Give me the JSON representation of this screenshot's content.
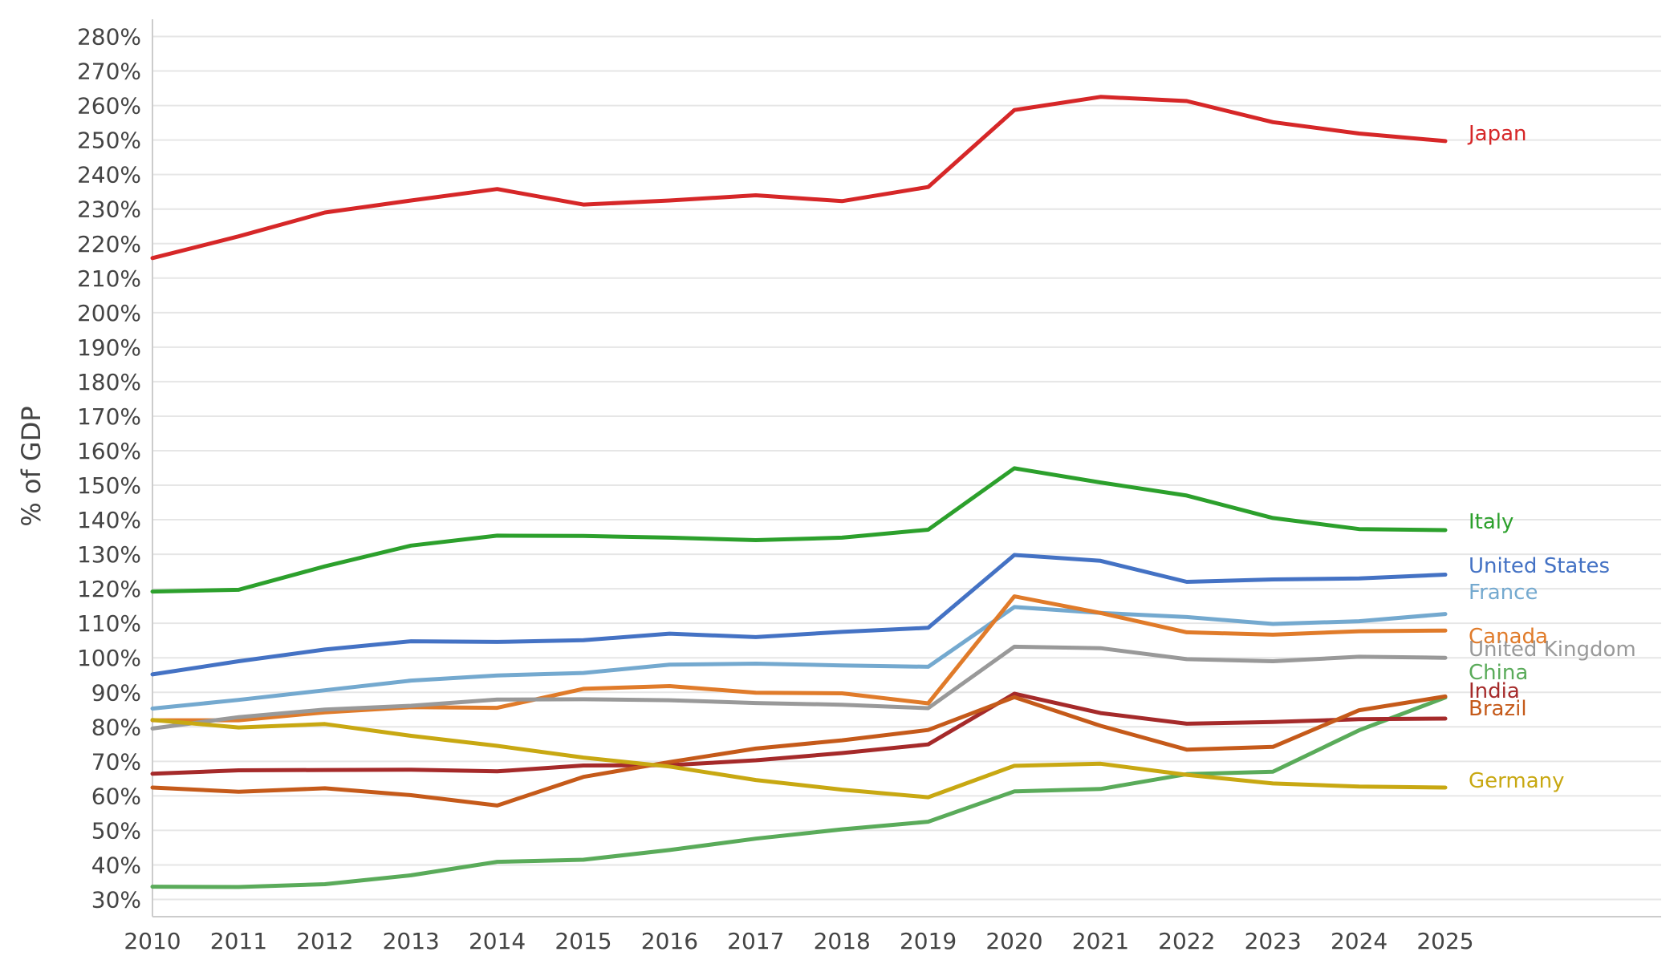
{
  "chart_data": {
    "type": "line",
    "title": "",
    "xlabel": "",
    "ylabel": "% of GDP",
    "x": [
      2010,
      2011,
      2012,
      2013,
      2014,
      2015,
      2016,
      2017,
      2018,
      2019,
      2020,
      2021,
      2022,
      2023,
      2024,
      2025
    ],
    "ylim": [
      25,
      285
    ],
    "yticks": [
      30,
      40,
      50,
      60,
      70,
      80,
      90,
      100,
      110,
      120,
      130,
      140,
      150,
      160,
      170,
      180,
      190,
      200,
      210,
      220,
      230,
      240,
      250,
      260,
      270,
      280
    ],
    "ytick_suffix": "%",
    "grid": "horizontal",
    "legend": "direct labels at line ends (right)",
    "series": [
      {
        "name": "Japan",
        "color": "#d62728",
        "values": [
          215.8,
          222.1,
          229.0,
          232.5,
          235.8,
          231.3,
          232.5,
          234.0,
          232.3,
          236.4,
          258.7,
          262.5,
          261.3,
          255.2,
          251.9,
          249.7
        ]
      },
      {
        "name": "Italy",
        "color": "#2ca02c",
        "values": [
          119.2,
          119.7,
          126.5,
          132.5,
          135.4,
          135.3,
          134.8,
          134.1,
          134.8,
          137.1,
          154.9,
          150.8,
          147.0,
          140.5,
          137.3,
          137.0
        ]
      },
      {
        "name": "United States",
        "color": "#4472c4",
        "values": [
          95.2,
          99.0,
          102.4,
          104.8,
          104.6,
          105.1,
          107.0,
          106.0,
          107.5,
          108.7,
          129.8,
          128.1,
          122.0,
          122.7,
          123.0,
          124.1
        ]
      },
      {
        "name": "France",
        "color": "#74a9cf",
        "values": [
          85.3,
          87.8,
          90.6,
          93.4,
          94.9,
          95.6,
          98.0,
          98.3,
          97.8,
          97.4,
          114.7,
          113.0,
          111.8,
          109.8,
          110.6,
          112.7
        ]
      },
      {
        "name": "Canada",
        "color": "#e07b2a",
        "values": [
          81.9,
          81.9,
          84.2,
          85.7,
          85.5,
          91.0,
          91.8,
          89.9,
          89.7,
          86.8,
          117.8,
          113.0,
          107.4,
          106.7,
          107.7,
          107.9
        ]
      },
      {
        "name": "United Kingdom",
        "color": "#999999",
        "values": [
          79.5,
          82.8,
          85.0,
          86.1,
          87.9,
          88.0,
          87.7,
          86.9,
          86.4,
          85.4,
          103.2,
          102.8,
          99.6,
          99.0,
          100.3,
          100.0
        ]
      },
      {
        "name": "China",
        "color": "#5aab5a",
        "values": [
          33.7,
          33.6,
          34.4,
          37.0,
          40.9,
          41.5,
          44.3,
          47.6,
          50.3,
          52.5,
          61.3,
          62.0,
          66.3,
          67.0,
          79.0,
          88.5
        ]
      },
      {
        "name": "India",
        "color": "#a52a2a",
        "values": [
          66.4,
          67.4,
          67.5,
          67.6,
          67.1,
          68.8,
          68.9,
          70.3,
          72.4,
          74.9,
          89.6,
          84.0,
          80.9,
          81.4,
          82.2,
          82.4
        ]
      },
      {
        "name": "Brazil",
        "color": "#c55a1a",
        "values": [
          62.4,
          61.2,
          62.2,
          60.2,
          57.2,
          65.5,
          69.8,
          73.7,
          76.1,
          79.1,
          88.6,
          80.3,
          73.4,
          74.2,
          84.8,
          88.8
        ]
      },
      {
        "name": "Germany",
        "color": "#c8a812",
        "values": [
          82.0,
          79.8,
          80.8,
          77.4,
          74.5,
          71.1,
          68.5,
          64.6,
          61.8,
          59.6,
          68.7,
          69.3,
          66.1,
          63.6,
          62.7,
          62.4
        ]
      }
    ]
  }
}
